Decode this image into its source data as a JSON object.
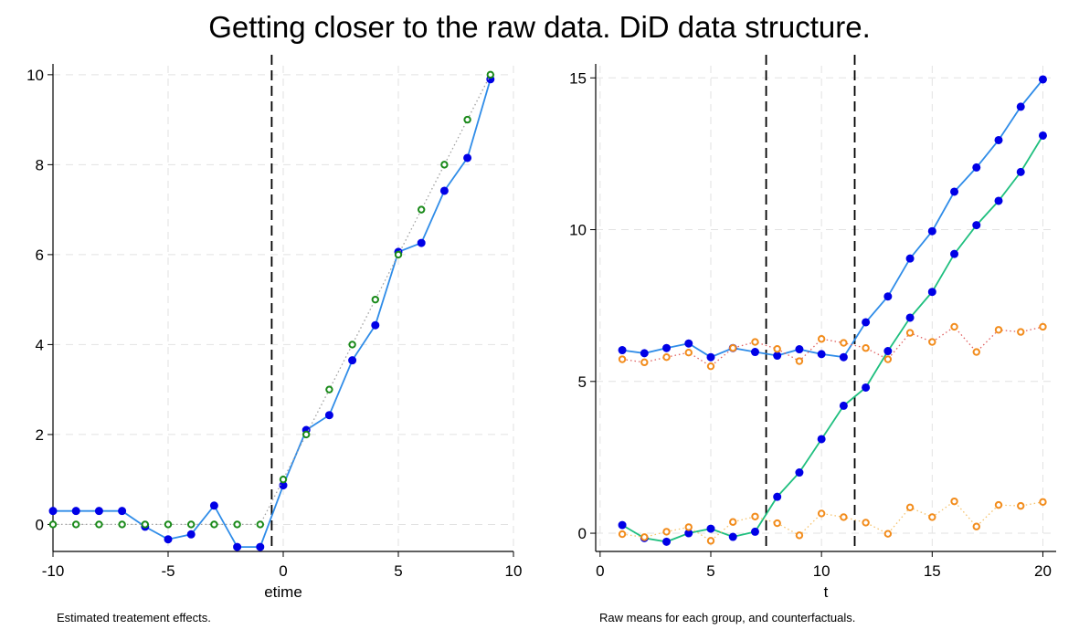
{
  "title": "Getting closer to the raw data.  DiD data structure.",
  "notes": {
    "left": "Estimated treatement effects.",
    "right": "Raw means for each group, and counterfactuals."
  },
  "colors": {
    "blue_marker": "#0000e6",
    "blue_line": "#2f8ce8",
    "green_line": "#1fbf7f",
    "green_marker": "#1a8a1a",
    "orange_marker": "#f28c1c",
    "red_dotted": "#e06060",
    "orange_dotted": "#f5c26b",
    "grid": "#e2e2e2"
  },
  "chart_data": [
    {
      "type": "line",
      "xlabel": "etime",
      "ylabel": "",
      "xlim": [
        -10,
        10
      ],
      "ylim": [
        -0.6,
        10.2
      ],
      "xticks": [
        -10,
        -5,
        0,
        5,
        10
      ],
      "yticks": [
        0,
        2,
        4,
        6,
        8,
        10
      ],
      "grid": true,
      "vlines": [
        -0.5
      ],
      "series": [
        {
          "style": "solid-blue",
          "x": [
            -10,
            -9,
            -8,
            -7,
            -6,
            -5,
            -4,
            -3,
            -2,
            -1,
            0,
            1,
            2,
            3,
            4,
            5,
            6,
            7,
            8,
            9
          ],
          "y": [
            0.3,
            0.3,
            0.3,
            0.3,
            -0.05,
            -0.33,
            -0.22,
            0.42,
            -0.5,
            -0.5,
            0.87,
            2.1,
            2.43,
            3.65,
            4.43,
            6.06,
            6.26,
            7.42,
            8.15,
            9.9
          ]
        },
        {
          "style": "dotted-green-hollow",
          "x": [
            -10,
            -9,
            -8,
            -7,
            -6,
            -5,
            -4,
            -3,
            -2,
            -1,
            0,
            1,
            2,
            3,
            4,
            5,
            6,
            7,
            8,
            9
          ],
          "y": [
            0,
            0,
            0,
            0,
            0,
            0,
            0,
            0,
            0,
            0,
            1,
            2,
            3,
            4,
            5,
            6,
            7,
            8,
            9,
            10
          ]
        }
      ]
    },
    {
      "type": "line",
      "xlabel": "t",
      "ylabel": "",
      "xlim": [
        -0.2,
        20.6
      ],
      "ylim": [
        -0.6,
        15.4
      ],
      "xticks": [
        0,
        5,
        10,
        15,
        20
      ],
      "yticks": [
        0,
        5,
        10,
        15
      ],
      "grid": true,
      "vlines": [
        7.5,
        11.5
      ],
      "series": [
        {
          "style": "solid-blue",
          "x": [
            1,
            2,
            3,
            4,
            5,
            6,
            7,
            8,
            9,
            10,
            11,
            12,
            13,
            14,
            15,
            16,
            17,
            18,
            19,
            20
          ],
          "y": [
            6.03,
            5.93,
            6.1,
            6.25,
            5.8,
            6.1,
            5.97,
            5.85,
            6.06,
            5.9,
            5.8,
            6.95,
            7.8,
            9.05,
            9.95,
            11.25,
            12.05,
            12.95,
            14.05,
            14.95
          ]
        },
        {
          "style": "solid-green",
          "x": [
            1,
            2,
            3,
            4,
            5,
            6,
            7,
            8,
            9,
            10,
            11,
            12,
            13,
            14,
            15,
            16,
            17,
            18,
            19,
            20
          ],
          "y": [
            0.27,
            -0.16,
            -0.28,
            0.0,
            0.15,
            -0.12,
            0.05,
            1.2,
            2.0,
            3.1,
            4.2,
            4.8,
            6.0,
            7.1,
            7.95,
            9.2,
            10.15,
            10.95,
            11.9,
            13.1
          ]
        },
        {
          "style": "dotted-red-orange-hollow",
          "x": [
            1,
            2,
            3,
            4,
            5,
            6,
            7,
            8,
            9,
            10,
            11,
            12,
            13,
            14,
            15,
            16,
            17,
            18,
            19,
            20
          ],
          "y": [
            5.73,
            5.63,
            5.8,
            5.95,
            5.5,
            6.1,
            6.3,
            6.07,
            5.67,
            6.4,
            6.27,
            6.1,
            5.73,
            6.6,
            6.3,
            6.8,
            5.97,
            6.7,
            6.63,
            6.8
          ]
        },
        {
          "style": "dotted-orange-hollow",
          "x": [
            1,
            2,
            3,
            4,
            5,
            6,
            7,
            8,
            9,
            10,
            11,
            12,
            13,
            14,
            15,
            16,
            17,
            18,
            19,
            20
          ],
          "y": [
            -0.03,
            -0.13,
            0.05,
            0.2,
            -0.25,
            0.37,
            0.55,
            0.33,
            -0.07,
            0.65,
            0.53,
            0.35,
            -0.02,
            0.85,
            0.53,
            1.05,
            0.22,
            0.93,
            0.9,
            1.03
          ]
        }
      ]
    }
  ]
}
